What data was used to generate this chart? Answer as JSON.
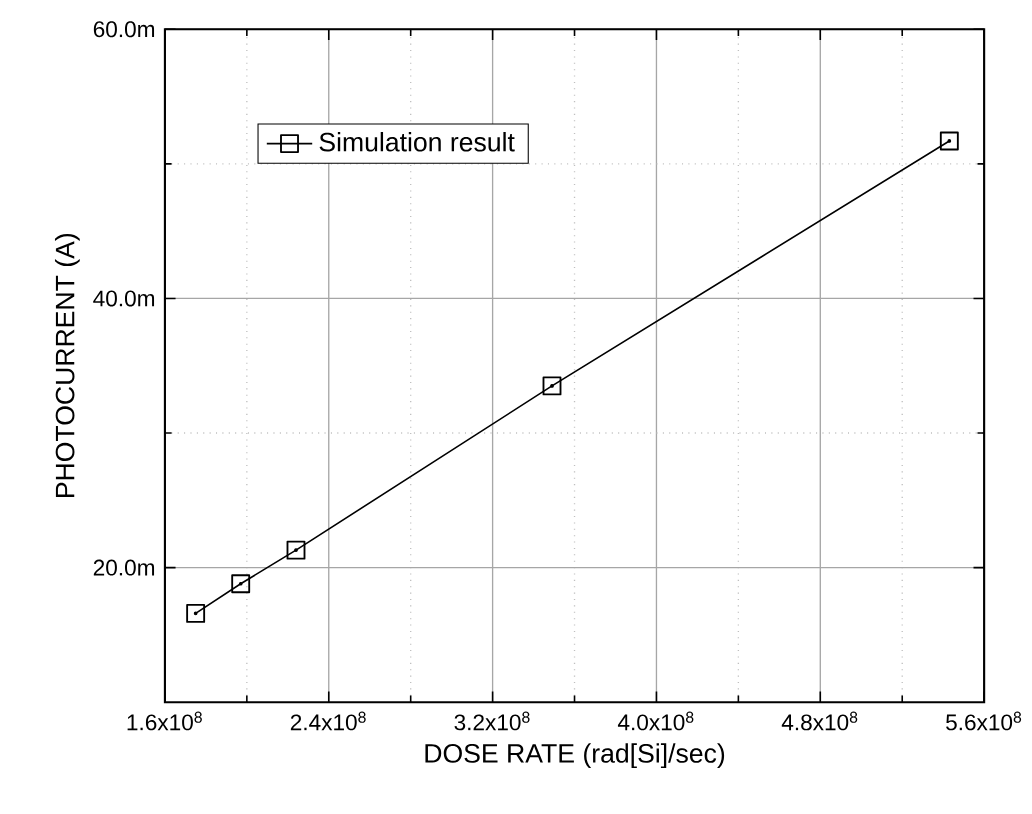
{
  "chart_data": {
    "type": "line",
    "xlabel": "DOSE RATE (rad[Si]/sec)",
    "ylabel": "PHOTOCURRENT (A)",
    "x": [
      175000000.0,
      197000000.0,
      224000000.0,
      349000000.0,
      543000000.0
    ],
    "series": [
      {
        "name": "Simulation result",
        "color": "#000000",
        "values": [
          16.6,
          18.8,
          21.3,
          33.5,
          51.7
        ]
      }
    ],
    "xlim": [
      160000000.0,
      560000000.0
    ],
    "ylim": [
      10,
      60
    ],
    "xticks": [
      {
        "value": 160000000.0,
        "label": "1.6x10$^{8}$"
      },
      {
        "value": 240000000.0,
        "label": "2.4x10$^{8}$"
      },
      {
        "value": 320000000.0,
        "label": "3.2x10$^{8}$"
      },
      {
        "value": 400000000.0,
        "label": "4.0x10$^{8}$"
      },
      {
        "value": 480000000.0,
        "label": "4.8x10$^{8}$"
      },
      {
        "value": 560000000.0,
        "label": "5.6x10$^{8}$"
      }
    ],
    "yticks": [
      {
        "value": 20,
        "label": "20.0m"
      },
      {
        "value": 40,
        "label": "40.0m"
      },
      {
        "value": 60,
        "label": "60.0m"
      }
    ],
    "grid": true,
    "legend": "top left",
    "marker": "square",
    "line_style": "solid"
  }
}
